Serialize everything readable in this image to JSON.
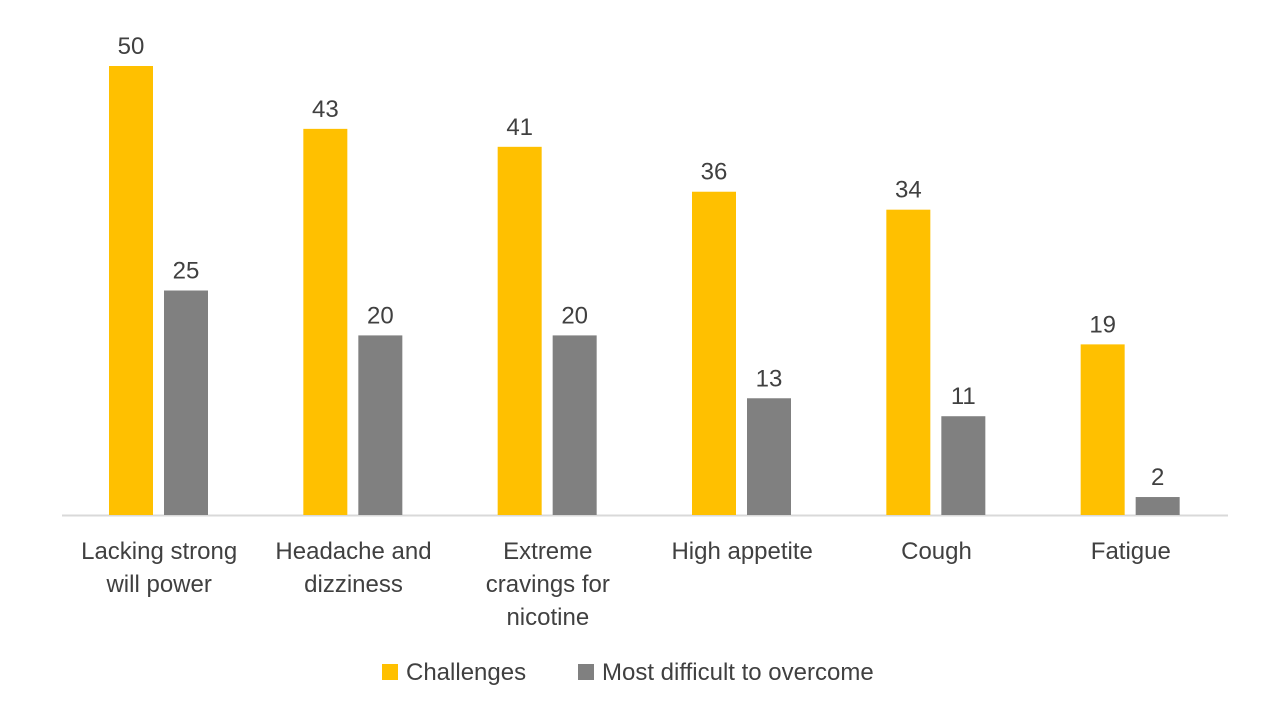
{
  "chart_data": {
    "type": "bar",
    "title": "",
    "xlabel": "",
    "ylabel": "",
    "ylim": [
      0,
      50
    ],
    "grid": false,
    "legend_position": "bottom",
    "categories": [
      [
        "Lacking strong",
        "will power"
      ],
      [
        "Headache and",
        "dizziness"
      ],
      [
        "Extreme",
        "cravings for",
        "nicotine"
      ],
      [
        "High appetite"
      ],
      [
        "Cough"
      ],
      [
        "Fatigue"
      ]
    ],
    "series": [
      {
        "name": "Challenges",
        "color": "#FFC000",
        "values": [
          50,
          43,
          41,
          36,
          34,
          19
        ]
      },
      {
        "name": "Most difficult to overcome",
        "color": "#808080",
        "values": [
          25,
          20,
          20,
          13,
          11,
          2
        ]
      }
    ]
  },
  "colors": {
    "axis": "#D9D9D9",
    "text": "#404040"
  }
}
